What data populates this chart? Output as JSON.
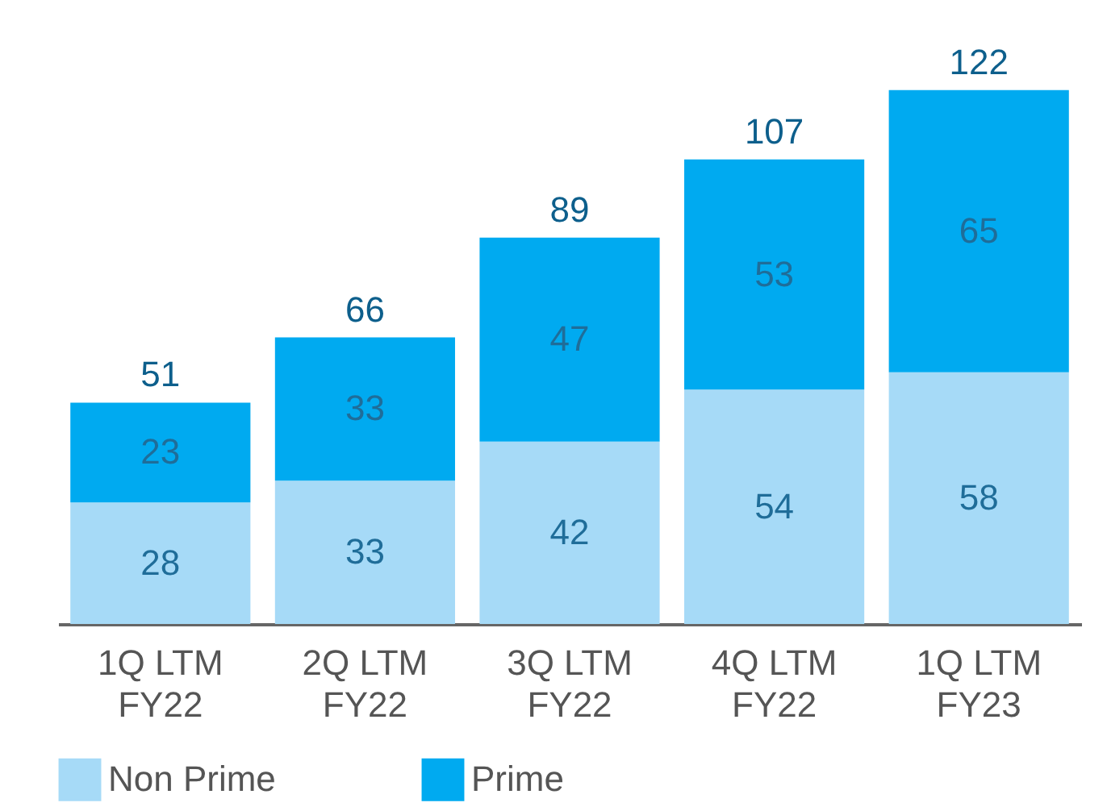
{
  "chart_data": {
    "type": "bar",
    "stacked": true,
    "categories": [
      "1Q LTM\nFY22",
      "2Q LTM\nFY22",
      "3Q LTM\nFY22",
      "4Q LTM\nFY22",
      "1Q LTM\nFY23"
    ],
    "series": [
      {
        "name": "Non Prime",
        "color": "#a6daf7",
        "values": [
          28,
          33,
          42,
          54,
          58
        ]
      },
      {
        "name": "Prime",
        "color": "#00aaf0",
        "values": [
          23,
          33,
          47,
          53,
          65
        ]
      }
    ],
    "data_labels": true,
    "totals": [
      "51",
      "66",
      "89",
      "107",
      "122"
    ],
    "legend": "bottom",
    "grid": false
  }
}
